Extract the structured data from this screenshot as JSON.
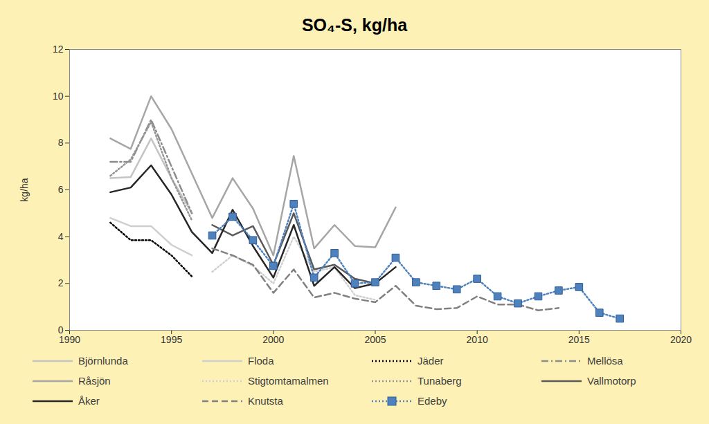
{
  "chart_data": {
    "type": "line",
    "title": "SO₄-S, kg/ha",
    "y_label": "kg/ha",
    "x": [
      1992,
      1993,
      1994,
      1995,
      1996,
      1997,
      1998,
      1999,
      2000,
      2001,
      2002,
      2003,
      2004,
      2005,
      2006,
      2007,
      2008,
      2009,
      2010,
      2011,
      2012,
      2013,
      2014,
      2015,
      2016,
      2017
    ],
    "xlim": [
      1990,
      2020
    ],
    "xticks": [
      1990,
      1995,
      2000,
      2005,
      2010,
      2015,
      2020
    ],
    "ylim": [
      0,
      12
    ],
    "yticks": [
      0,
      2,
      4,
      6,
      8,
      10,
      12
    ],
    "grid": false,
    "legend": "bottom",
    "series": [
      {
        "name": "Björnlunda",
        "color": "#c4c4c4",
        "line_style": "solid",
        "values": [
          6.5,
          6.55,
          8.2,
          6.5,
          5.0,
          null,
          null,
          null,
          null,
          null,
          null,
          null,
          null,
          null,
          null,
          null,
          null,
          null,
          null,
          null,
          null,
          null,
          null,
          null,
          null,
          null
        ]
      },
      {
        "name": "Floda",
        "color": "#cfcfcf",
        "line_style": "solid",
        "values": [
          4.8,
          4.45,
          4.45,
          3.65,
          3.2,
          null,
          null,
          null,
          null,
          null,
          null,
          null,
          null,
          null,
          null,
          null,
          null,
          null,
          null,
          null,
          null,
          null,
          null,
          null,
          null,
          null
        ]
      },
      {
        "name": "Jäder",
        "color": "#000000",
        "line_style": "dotted",
        "values": [
          4.6,
          3.85,
          3.85,
          3.2,
          2.3,
          null,
          null,
          null,
          null,
          null,
          null,
          null,
          null,
          null,
          null,
          null,
          null,
          null,
          null,
          null,
          null,
          null,
          null,
          null,
          null,
          null
        ]
      },
      {
        "name": "Mellösa",
        "color": "#8c8c8c",
        "line_style": "dashdot",
        "values": [
          7.2,
          7.2,
          9.0,
          7.0,
          5.0,
          null,
          null,
          null,
          null,
          null,
          null,
          null,
          null,
          null,
          null,
          null,
          null,
          null,
          null,
          null,
          null,
          null,
          null,
          null,
          null,
          null
        ]
      },
      {
        "name": "Råsjön",
        "color": "#a6a6a6",
        "line_style": "solid",
        "values": [
          8.2,
          7.75,
          10.0,
          8.6,
          6.7,
          4.8,
          6.5,
          5.2,
          3.2,
          7.45,
          3.5,
          4.5,
          3.6,
          3.55,
          5.25,
          null,
          null,
          null,
          null,
          null,
          null,
          null,
          null,
          null,
          null,
          null
        ]
      },
      {
        "name": "Stigtomtamalmen",
        "color": "#d0d0d0",
        "line_style": "dotted",
        "values": [
          null,
          null,
          null,
          null,
          null,
          2.5,
          3.2,
          2.75,
          2.0,
          4.0,
          2.5,
          2.7,
          1.5,
          1.3,
          null,
          null,
          null,
          null,
          null,
          null,
          null,
          null,
          null,
          null,
          null,
          null
        ]
      },
      {
        "name": "Tunaberg",
        "color": "#969696",
        "line_style": "dotted",
        "values": [
          6.6,
          7.3,
          8.9,
          6.5,
          4.7,
          null,
          null,
          null,
          null,
          null,
          null,
          null,
          null,
          null,
          null,
          null,
          null,
          null,
          null,
          null,
          null,
          null,
          null,
          null,
          null,
          null
        ]
      },
      {
        "name": "Vallmotorp",
        "color": "#595959",
        "line_style": "solid",
        "values": [
          null,
          null,
          null,
          null,
          null,
          4.5,
          4.05,
          4.45,
          2.8,
          5.0,
          2.6,
          2.8,
          2.2,
          2.0,
          null,
          null,
          null,
          null,
          null,
          null,
          null,
          null,
          null,
          null,
          null,
          null
        ]
      },
      {
        "name": "Åker",
        "color": "#262626",
        "line_style": "solid",
        "values": [
          5.9,
          6.1,
          7.05,
          5.8,
          4.2,
          3.3,
          5.15,
          3.6,
          2.25,
          4.5,
          1.9,
          2.7,
          1.8,
          2.0,
          2.7,
          null,
          null,
          null,
          null,
          null,
          null,
          null,
          null,
          null,
          null,
          null
        ]
      },
      {
        "name": "Knutsta",
        "color": "#808080",
        "line_style": "dashed",
        "values": [
          null,
          null,
          null,
          null,
          null,
          3.5,
          3.2,
          2.8,
          1.6,
          2.6,
          1.4,
          1.6,
          1.35,
          1.2,
          1.9,
          1.05,
          0.9,
          0.95,
          1.45,
          1.1,
          1.1,
          0.85,
          0.95,
          null,
          null,
          null
        ]
      },
      {
        "name": "Edeby",
        "color": "#4f81bd",
        "line_style": "dotted",
        "marker": "square",
        "values": [
          null,
          null,
          null,
          null,
          null,
          4.05,
          4.85,
          3.85,
          2.75,
          5.4,
          2.25,
          3.3,
          2.0,
          2.05,
          3.1,
          2.05,
          1.9,
          1.75,
          2.2,
          1.45,
          1.15,
          1.45,
          1.7,
          1.85,
          0.75,
          0.5
        ]
      }
    ]
  }
}
